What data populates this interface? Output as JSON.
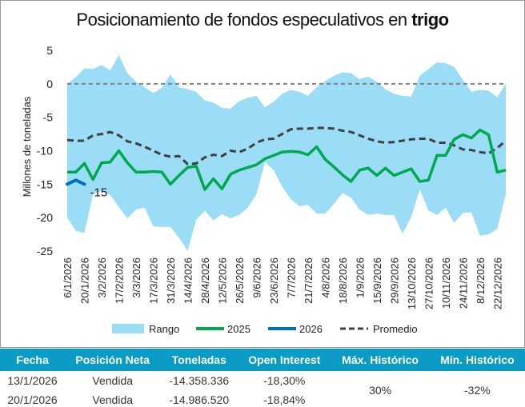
{
  "title": {
    "main": "Posicionamiento de fondos especulativos en ",
    "bold": "trigo"
  },
  "chart_data": {
    "type": "line",
    "title": "Posicionamiento de fondos especulativos en trigo",
    "ylabel": "Millones de toneladas",
    "ylim": [
      -25,
      5
    ],
    "yticks": [
      5,
      0,
      -5,
      -10,
      -15,
      -20,
      -25
    ],
    "xtick_labels": [
      "6/1/2026",
      "20/1/2026",
      "3/2/2026",
      "17/2/2026",
      "3/3/2026",
      "17/3/2026",
      "31/3/2026",
      "14/4/2026",
      "28/4/2026",
      "12/5/2026",
      "26/5/2026",
      "9/6/2026",
      "23/6/2026",
      "7/7/2026",
      "21/7/2026",
      "4/8/2026",
      "18/8/2026",
      "1/9/2026",
      "15/9/2026",
      "29/9/2026",
      "13/10/2026",
      "27/10/2026",
      "10/11/2026",
      "24/11/2026",
      "8/12/2026",
      "22/12/2026"
    ],
    "weeks": 52,
    "range_max": [
      0,
      1,
      2.3,
      2.2,
      2.8,
      2,
      4.3,
      1.6,
      0.3,
      -0.5,
      -1.4,
      -0.6,
      1.4,
      -0.5,
      -0.8,
      -1.2,
      -2.5,
      -2.8,
      -3.6,
      -3.7,
      -2.6,
      -2.1,
      -1.8,
      -3.5,
      -2.7,
      -1.5,
      -0.9,
      -1.2,
      -1.8,
      -0.5,
      0.4,
      1.2,
      1.7,
      1.6,
      0.7,
      1.1,
      0.3,
      -0.8,
      -1.5,
      -1.8,
      -1.9,
      1.2,
      2.2,
      3.2,
      3.1,
      2.5,
      0.6,
      -1.2,
      -0.9,
      -1.0,
      -2.0,
      0
    ],
    "range_min": [
      -20,
      -22,
      -22.3,
      -16.5,
      -16,
      -16.6,
      -18.4,
      -20.1,
      -18.8,
      -18.5,
      -21.3,
      -21.4,
      -21.4,
      -23,
      -25,
      -20.3,
      -19,
      -20.4,
      -19.5,
      -20.1,
      -19.6,
      -18.5,
      -16.5,
      -11.7,
      -12.9,
      -15.4,
      -17.2,
      -18.3,
      -18.1,
      -19.4,
      -19.4,
      -18.0,
      -16.3,
      -17.0,
      -18.8,
      -19.6,
      -19.4,
      -19.6,
      -19.6,
      -22.4,
      -19.9,
      -15.8,
      -18.9,
      -19.6,
      -18.5,
      -20.8,
      -19.3,
      -19.2,
      -22.7,
      -22.5,
      -21.7,
      -16.5
    ],
    "series": [
      {
        "name": "2025",
        "color": "#00a84f",
        "values": [
          -13.2,
          -13.2,
          -11.9,
          -14.3,
          -11.8,
          -11.7,
          -10.0,
          -11.8,
          -13.2,
          -13.2,
          -13.1,
          -13.2,
          -15.0,
          -13.7,
          -12.5,
          -12.3,
          -15.8,
          -14.2,
          -15.7,
          -13.5,
          -12.9,
          -12.5,
          -12.1,
          -11.2,
          -10.7,
          -10.2,
          -10.1,
          -10.2,
          -10.6,
          -9.4,
          -11.3,
          -12.4,
          -13.6,
          -14.6,
          -12.9,
          -12.6,
          -13.7,
          -12.6,
          -13.7,
          -13.2,
          -12.7,
          -14.6,
          -14.4,
          -10.7,
          -10.7,
          -8.3,
          -7.6,
          -8.1,
          -6.9,
          -7.6,
          -13.2,
          -12.9
        ]
      },
      {
        "name": "2026",
        "color": "#0070c0",
        "values": [
          -15.0,
          -14.4,
          -15.0
        ],
        "last_label": "-15"
      },
      {
        "name": "Promedio",
        "color": "#404040",
        "values": [
          -8.4,
          -8.5,
          -8.5,
          -7.7,
          -7.5,
          -7.2,
          -7.7,
          -8.6,
          -8.9,
          -9.4,
          -10.0,
          -10.6,
          -10.9,
          -10.8,
          -12.0,
          -11.9,
          -11.0,
          -10.6,
          -10.8,
          -10.0,
          -10.2,
          -9.7,
          -8.8,
          -8.3,
          -8.2,
          -7.5,
          -6.8,
          -6.7,
          -6.7,
          -6.6,
          -6.6,
          -6.7,
          -7.0,
          -7.2,
          -7.7,
          -8.2,
          -8.6,
          -8.8,
          -8.7,
          -8.5,
          -8.3,
          -8.2,
          -8.2,
          -8.8,
          -8.8,
          -9.2,
          -9.8,
          -9.9,
          -10.2,
          -10.4,
          -9.6,
          -8.5
        ]
      }
    ],
    "legend": {
      "placement": "bottom",
      "items": [
        "Rango",
        "2025",
        "2026",
        "Promedio"
      ]
    },
    "colors": {
      "range": "#9bdcf7",
      "zero_line": "#808080"
    }
  },
  "table": {
    "headers": [
      "Fecha",
      "Posición Neta",
      "Toneladas",
      "Open Interest",
      "Máx. Histórico",
      "Mín. Histórico"
    ],
    "rows": [
      [
        "13/1/2026",
        "Vendida",
        "-14.358.336",
        "-18,30%"
      ],
      [
        "20/1/2026",
        "Vendida",
        "-14.986.520",
        "-18,84%"
      ]
    ],
    "max_hist": "30%",
    "min_hist": "-32%"
  }
}
